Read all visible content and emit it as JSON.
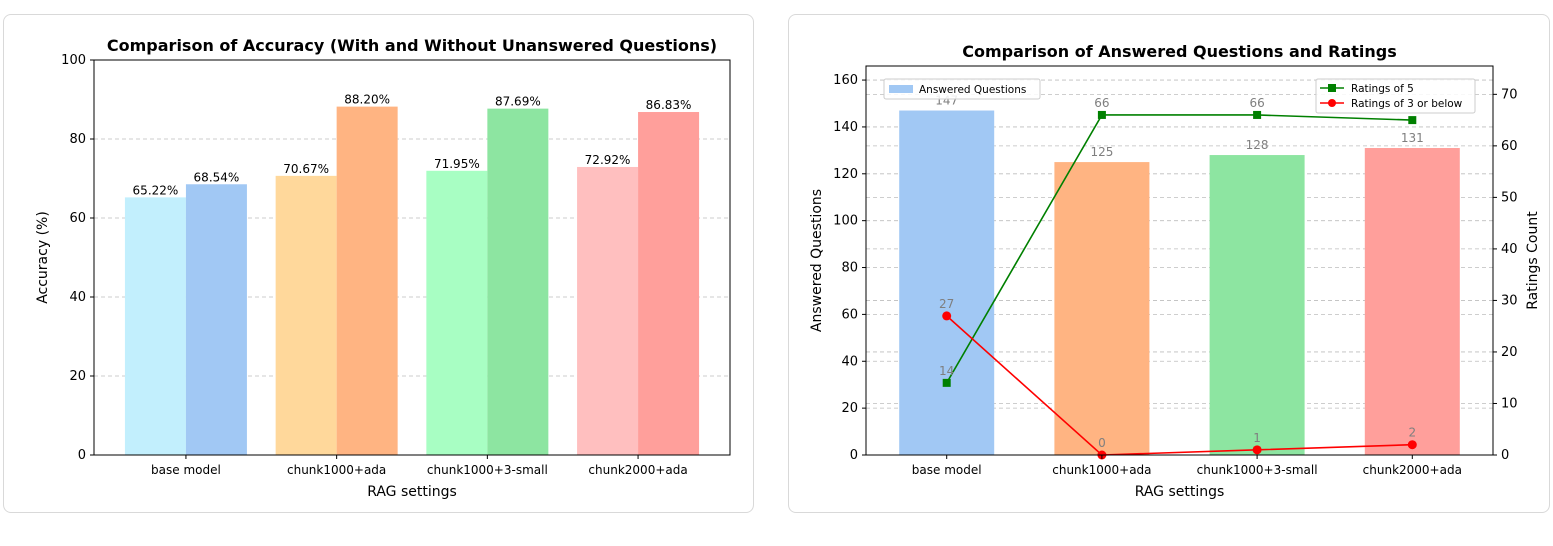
{
  "chart_data": [
    {
      "type": "bar",
      "title": "Comparison of Accuracy (With and Without Unanswered Questions)",
      "xlabel": "RAG settings",
      "ylabel": "Accuracy (%)",
      "ylim": [
        0,
        100
      ],
      "yticks": [
        "0",
        "20",
        "40",
        "60",
        "80",
        "100"
      ],
      "grid": "y-dashed",
      "categories": [
        "base model",
        "chunk1000+ada",
        "chunk1000+3-small",
        "chunk2000+ada"
      ],
      "series": [
        {
          "values": [
            65.22,
            70.67,
            71.95,
            72.92
          ],
          "value_labels": [
            "65.22%",
            "70.67%",
            "71.95%",
            "72.92%"
          ],
          "colors": [
            "#c2effd",
            "#ffd89b",
            "#a8fec3",
            "#ffbfbf"
          ]
        },
        {
          "values": [
            68.54,
            88.2,
            87.69,
            86.83
          ],
          "value_labels": [
            "68.54%",
            "88.20%",
            "87.69%",
            "86.83%"
          ],
          "colors": [
            "#a1c8f4",
            "#ffb482",
            "#8de5a1",
            "#ff9f9b"
          ]
        }
      ]
    },
    {
      "type": "bar+line",
      "title": "Comparison of Answered Questions and Ratings",
      "xlabel": "RAG settings",
      "ylabel": "Answered Questions",
      "ylabel_right": "Ratings Count",
      "ylim": [
        0,
        166
      ],
      "ylim_right": [
        0,
        75.5
      ],
      "yticks": [
        "0",
        "20",
        "40",
        "60",
        "80",
        "100",
        "120",
        "140",
        "160"
      ],
      "yticks_right": [
        "0",
        "10",
        "20",
        "30",
        "40",
        "50",
        "60",
        "70"
      ],
      "grid": "y-dashed",
      "categories": [
        "base model",
        "chunk1000+ada",
        "chunk1000+3-small",
        "chunk2000+ada"
      ],
      "bars": {
        "name": "Answered Questions",
        "values": [
          147,
          125,
          128,
          131
        ],
        "value_labels": [
          "147",
          "125",
          "128",
          "131"
        ],
        "colors": [
          "#a1c8f4",
          "#ffb482",
          "#8de5a1",
          "#ff9f9b"
        ],
        "legend_color": "#a1c8f4"
      },
      "lines": [
        {
          "name": "Ratings of 5",
          "values": [
            14,
            66,
            66,
            65
          ],
          "value_labels": [
            "14",
            "66",
            "66",
            ""
          ],
          "color": "#008000",
          "marker": "square"
        },
        {
          "name": "Ratings of 3 or below",
          "values": [
            27,
            0,
            1,
            2
          ],
          "value_labels": [
            "27",
            "0",
            "1",
            "2"
          ],
          "color": "#ff0000",
          "marker": "circle"
        }
      ],
      "legend_left": "upper-left",
      "legend_right": "upper-right"
    }
  ]
}
